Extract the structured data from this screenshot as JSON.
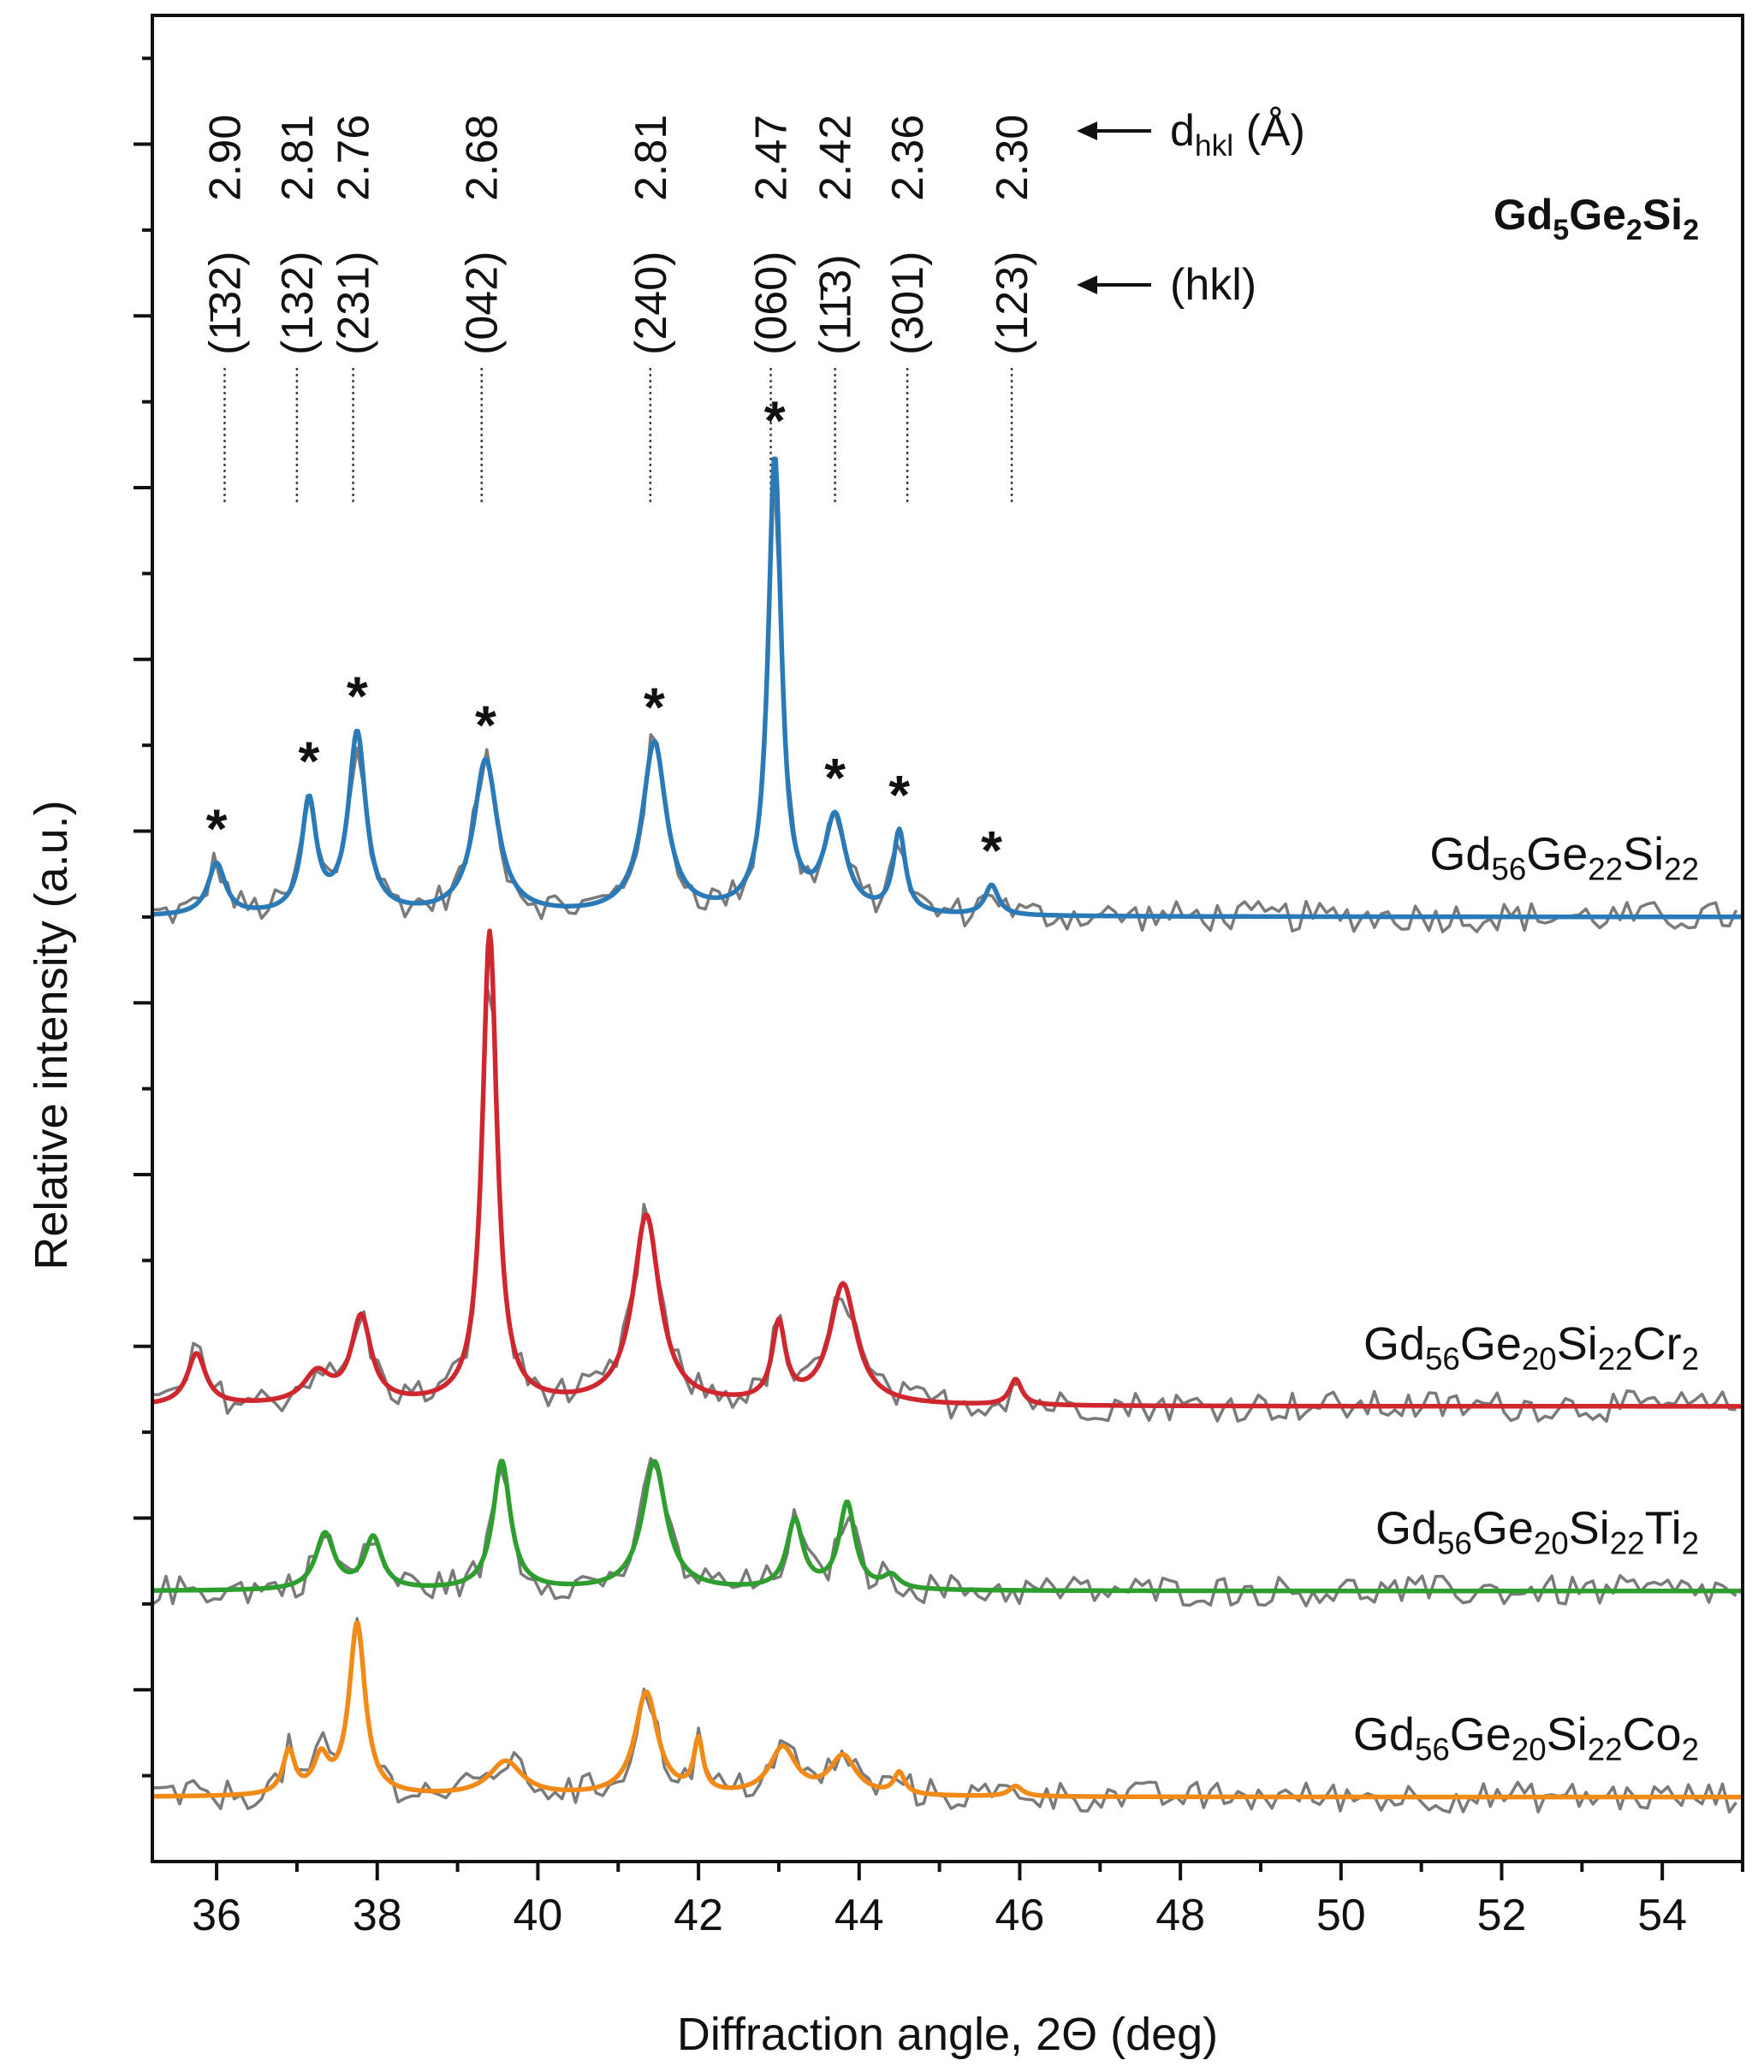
{
  "chart_data": {
    "type": "line",
    "title": "Gd5Ge2Si2",
    "title_parts": [
      {
        "text": "Gd",
        "sub": false
      },
      {
        "text": "5",
        "sub": true
      },
      {
        "text": "Ge",
        "sub": false
      },
      {
        "text": "2",
        "sub": true
      },
      {
        "text": "Si",
        "sub": false
      },
      {
        "text": "2",
        "sub": true
      }
    ],
    "xlabel": "Diffraction angle, 2Θ (deg)",
    "ylabel": "Relative intensity (a.u.)",
    "xlim": [
      35.2,
      55
    ],
    "ylim": [
      0,
      21.5
    ],
    "x_ticks": [
      36,
      38,
      40,
      42,
      44,
      46,
      48,
      50,
      52,
      54
    ],
    "grid": false,
    "dhkl_label": {
      "text": "d",
      "sub": "hkl",
      "after": " (Å)"
    },
    "hkl_label": "(hkl)",
    "reference_peaks": [
      {
        "two_theta": 36.1,
        "hkl": "(1̄32)",
        "d": "2.90"
      },
      {
        "two_theta": 37.0,
        "hkl": "(132)",
        "d": "2.81"
      },
      {
        "two_theta": 37.7,
        "hkl": "(231)",
        "d": "2.76"
      },
      {
        "two_theta": 39.3,
        "hkl": "(042)",
        "d": "2.68"
      },
      {
        "two_theta": 41.4,
        "hkl": "(240)",
        "d": "2.81"
      },
      {
        "two_theta": 42.9,
        "hkl": "(060)",
        "d": "2.47"
      },
      {
        "two_theta": 43.7,
        "hkl": "(11̄3)",
        "d": "2.42"
      },
      {
        "two_theta": 44.6,
        "hkl": "(301)",
        "d": "2.36"
      },
      {
        "two_theta": 45.9,
        "hkl": "(123)",
        "d": "2.30"
      }
    ],
    "star_marker": "*",
    "series": [
      {
        "name": "Gd56Ge22Si22",
        "label_parts": [
          {
            "text": "Gd",
            "sub": false
          },
          {
            "text": "56",
            "sub": true
          },
          {
            "text": "Ge",
            "sub": false
          },
          {
            "text": "22",
            "sub": true
          },
          {
            "text": "Si",
            "sub": false
          },
          {
            "text": "22",
            "sub": true
          }
        ],
        "color": "#2a7ab8",
        "baseline": 11.0,
        "peaks": [
          {
            "x": 36.0,
            "h": 0.6,
            "w": 0.13
          },
          {
            "x": 37.15,
            "h": 1.3,
            "w": 0.11
          },
          {
            "x": 37.75,
            "h": 2.1,
            "w": 0.13
          },
          {
            "x": 39.35,
            "h": 1.8,
            "w": 0.18
          },
          {
            "x": 41.45,
            "h": 2.0,
            "w": 0.18
          },
          {
            "x": 42.95,
            "h": 5.3,
            "w": 0.1
          },
          {
            "x": 43.7,
            "h": 1.1,
            "w": 0.16
          },
          {
            "x": 44.5,
            "h": 0.95,
            "w": 0.09
          },
          {
            "x": 45.65,
            "h": 0.35,
            "w": 0.1
          }
        ],
        "starred": [
          36.0,
          37.15,
          37.75,
          39.35,
          41.45,
          42.95,
          43.7,
          44.5,
          45.65
        ]
      },
      {
        "name": "Gd56Ge20Si22Cr2",
        "label_parts": [
          {
            "text": "Gd",
            "sub": false
          },
          {
            "text": "56",
            "sub": true
          },
          {
            "text": "Ge",
            "sub": false
          },
          {
            "text": "20",
            "sub": true
          },
          {
            "text": "Si",
            "sub": false
          },
          {
            "text": "22",
            "sub": true
          },
          {
            "text": "Cr",
            "sub": false
          },
          {
            "text": "2",
            "sub": true
          }
        ],
        "color": "#d0262d",
        "baseline": 5.3,
        "peaks": [
          {
            "x": 35.75,
            "h": 0.6,
            "w": 0.14
          },
          {
            "x": 37.25,
            "h": 0.35,
            "w": 0.2
          },
          {
            "x": 37.8,
            "h": 1.0,
            "w": 0.15
          },
          {
            "x": 39.4,
            "h": 5.5,
            "w": 0.11
          },
          {
            "x": 41.35,
            "h": 2.2,
            "w": 0.2
          },
          {
            "x": 43.0,
            "h": 0.9,
            "w": 0.1
          },
          {
            "x": 43.8,
            "h": 1.4,
            "w": 0.2
          },
          {
            "x": 45.95,
            "h": 0.3,
            "w": 0.09
          }
        ]
      },
      {
        "name": "Gd56Ge20Si22Ti2",
        "label_parts": [
          {
            "text": "Gd",
            "sub": false
          },
          {
            "text": "56",
            "sub": true
          },
          {
            "text": "Ge",
            "sub": false
          },
          {
            "text": "20",
            "sub": true
          },
          {
            "text": "Si",
            "sub": false
          },
          {
            "text": "22",
            "sub": true
          },
          {
            "text": "Ti",
            "sub": false
          },
          {
            "text": "2",
            "sub": true
          }
        ],
        "color": "#2e9e2e",
        "baseline": 3.15,
        "peaks": [
          {
            "x": 37.35,
            "h": 0.65,
            "w": 0.14
          },
          {
            "x": 37.95,
            "h": 0.6,
            "w": 0.13
          },
          {
            "x": 39.55,
            "h": 1.5,
            "w": 0.13
          },
          {
            "x": 41.45,
            "h": 1.5,
            "w": 0.18
          },
          {
            "x": 43.2,
            "h": 0.8,
            "w": 0.12
          },
          {
            "x": 43.85,
            "h": 1.0,
            "w": 0.12
          },
          {
            "x": 44.4,
            "h": 0.15,
            "w": 0.12
          }
        ]
      },
      {
        "name": "Gd56Ge20Si22Co2",
        "label_parts": [
          {
            "text": "Gd",
            "sub": false
          },
          {
            "text": "56",
            "sub": true
          },
          {
            "text": "Ge",
            "sub": false
          },
          {
            "text": "20",
            "sub": true
          },
          {
            "text": "Si",
            "sub": false
          },
          {
            "text": "22",
            "sub": true
          },
          {
            "text": "Co",
            "sub": false
          },
          {
            "text": "2",
            "sub": true
          }
        ],
        "color": "#f28a18",
        "baseline": 0.75,
        "peaks": [
          {
            "x": 36.9,
            "h": 0.5,
            "w": 0.09
          },
          {
            "x": 37.3,
            "h": 0.4,
            "w": 0.11
          },
          {
            "x": 37.75,
            "h": 2.0,
            "w": 0.12
          },
          {
            "x": 39.6,
            "h": 0.4,
            "w": 0.25
          },
          {
            "x": 41.35,
            "h": 1.2,
            "w": 0.17
          },
          {
            "x": 42.0,
            "h": 0.6,
            "w": 0.07
          },
          {
            "x": 43.05,
            "h": 0.55,
            "w": 0.2
          },
          {
            "x": 43.8,
            "h": 0.45,
            "w": 0.2
          },
          {
            "x": 44.5,
            "h": 0.25,
            "w": 0.08
          },
          {
            "x": 45.95,
            "h": 0.12,
            "w": 0.1
          }
        ]
      }
    ]
  }
}
